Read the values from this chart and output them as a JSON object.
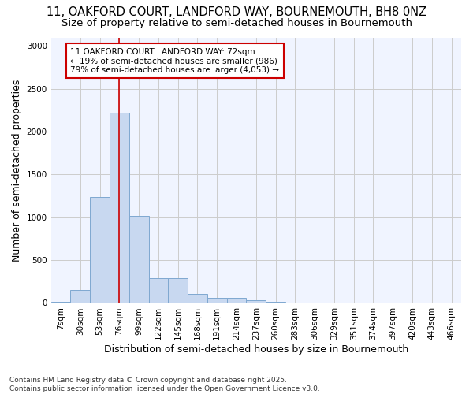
{
  "title1": "11, OAKFORD COURT, LANDFORD WAY, BOURNEMOUTH, BH8 0NZ",
  "title2": "Size of property relative to semi-detached houses in Bournemouth",
  "xlabel": "Distribution of semi-detached houses by size in Bournemouth",
  "ylabel": "Number of semi-detached properties",
  "categories": [
    "7sqm",
    "30sqm",
    "53sqm",
    "76sqm",
    "99sqm",
    "122sqm",
    "145sqm",
    "168sqm",
    "191sqm",
    "214sqm",
    "237sqm",
    "260sqm",
    "283sqm",
    "306sqm",
    "329sqm",
    "351sqm",
    "374sqm",
    "397sqm",
    "420sqm",
    "443sqm",
    "466sqm"
  ],
  "values": [
    15,
    155,
    1240,
    2220,
    1020,
    285,
    285,
    110,
    60,
    55,
    30,
    10,
    0,
    0,
    0,
    0,
    0,
    0,
    0,
    0,
    0
  ],
  "bar_color": "#c8d8f0",
  "bar_edge_color": "#7fa8d0",
  "vline_color": "#cc0000",
  "vline_x": 3.0,
  "annotation_text": "11 OAKFORD COURT LANDFORD WAY: 72sqm\n← 19% of semi-detached houses are smaller (986)\n79% of semi-detached houses are larger (4,053) →",
  "annotation_box_color": "#ffffff",
  "annotation_box_edge": "#cc0000",
  "ylim": [
    0,
    3100
  ],
  "bg_color": "#ffffff",
  "plot_bg_color": "#f0f4ff",
  "grid_color": "#cccccc",
  "title_fontsize": 10.5,
  "subtitle_fontsize": 9.5,
  "axis_label_fontsize": 9,
  "tick_fontsize": 7.5,
  "annotation_fontsize": 7.5,
  "footer_fontsize": 6.5,
  "footer1": "Contains HM Land Registry data © Crown copyright and database right 2025.",
  "footer2": "Contains public sector information licensed under the Open Government Licence v3.0."
}
